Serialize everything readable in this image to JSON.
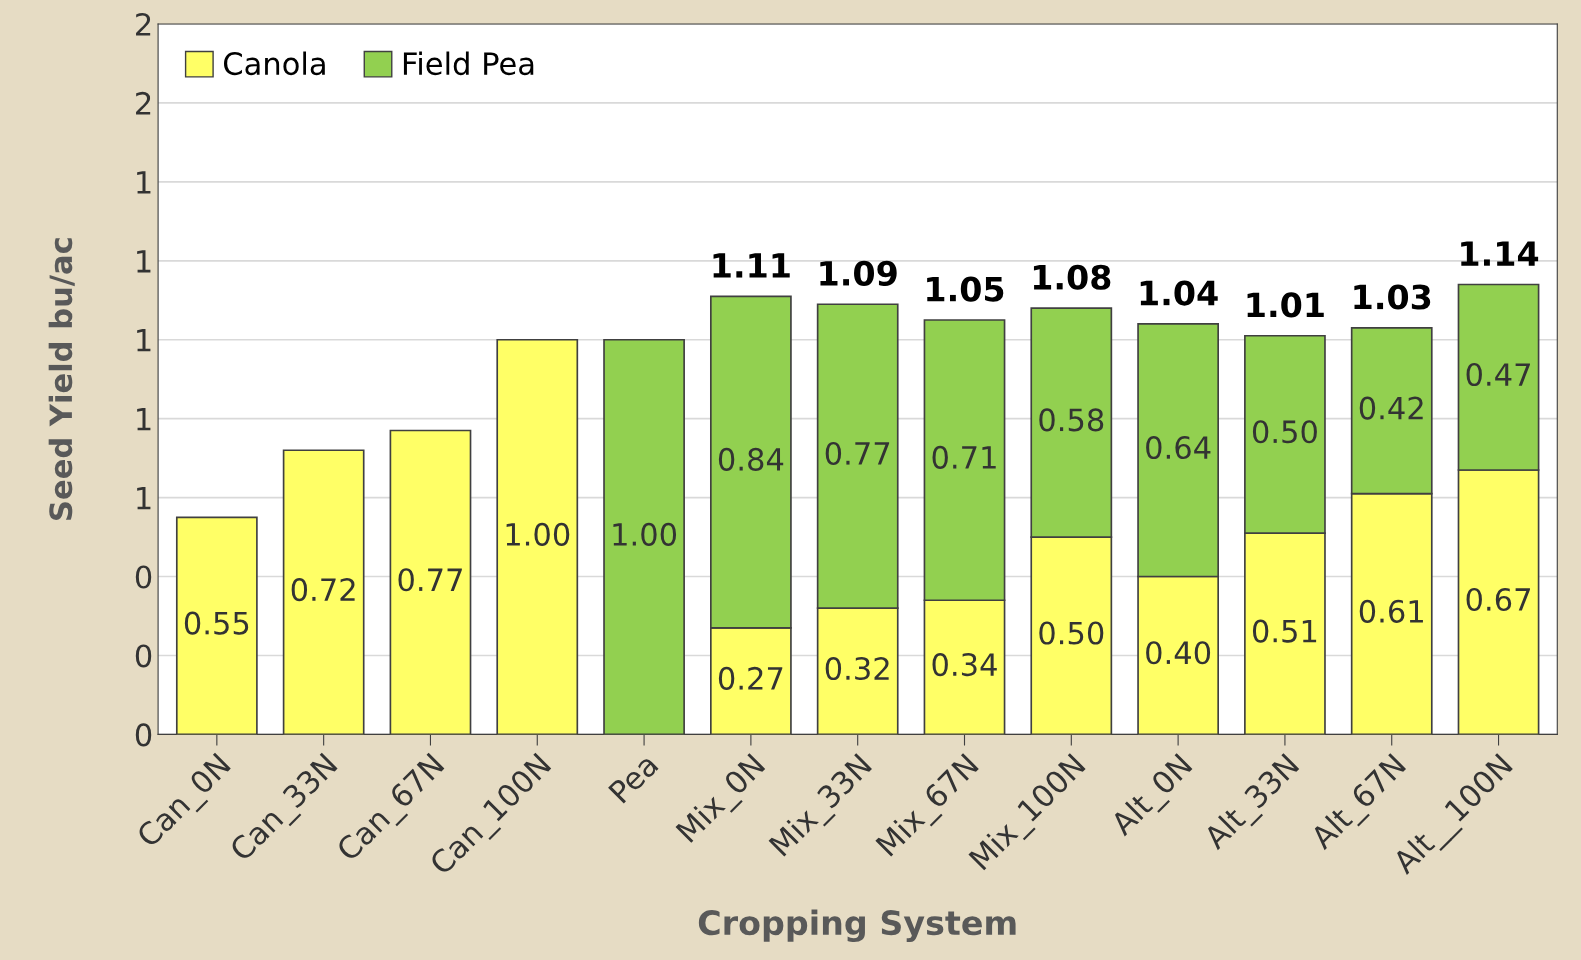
{
  "chart_data": {
    "type": "bar",
    "stacked": true,
    "xlabel": "Cropping System",
    "ylabel": "Seed Yield bu/ac",
    "categories": [
      "Can_0N",
      "Can_33N",
      "Can_67N",
      "Can_100N",
      "Pea",
      "Mix_0N",
      "Mix_33N",
      "Mix_67N",
      "Mix_100N",
      "Alt_0N",
      "Alt_33N",
      "Alt_67N",
      "Alt__100N"
    ],
    "series": [
      {
        "name": "Canola",
        "color": "#ffff66",
        "values": [
          0.55,
          0.72,
          0.77,
          1.0,
          null,
          0.27,
          0.32,
          0.34,
          0.5,
          0.4,
          0.51,
          0.61,
          0.67
        ],
        "value_labels": [
          "0.55",
          "0.72",
          "0.77",
          "1.00",
          null,
          "0.27",
          "0.32",
          "0.34",
          "0.50",
          "0.40",
          "0.51",
          "0.61",
          "0.67"
        ]
      },
      {
        "name": "Field Pea",
        "color": "#92d050",
        "values": [
          null,
          null,
          null,
          null,
          1.0,
          0.84,
          0.77,
          0.71,
          0.58,
          0.64,
          0.5,
          0.42,
          0.47
        ],
        "value_labels": [
          null,
          null,
          null,
          null,
          "1.00",
          "0.84",
          "0.77",
          "0.71",
          "0.58",
          "0.64",
          "0.50",
          "0.42",
          "0.47"
        ]
      }
    ],
    "totals": [
      null,
      null,
      null,
      null,
      null,
      "1.11",
      "1.09",
      "1.05",
      "1.08",
      "1.04",
      "1.01",
      "1.03",
      "1.14"
    ],
    "ylim": [
      0,
      1.8
    ],
    "yticks": [
      0,
      {
        "value": 0.2,
        "label": "0"
      },
      {
        "value": 0.4,
        "label": "0"
      },
      {
        "value": 0.6,
        "label": "1"
      },
      {
        "value": 0.8,
        "label": "1"
      },
      1,
      {
        "value": 1.2,
        "label": "1"
      },
      {
        "value": 1.4,
        "label": "1"
      },
      {
        "value": 1.6,
        "label": "2"
      },
      {
        "value": 1.8,
        "label": "2"
      }
    ],
    "grid": "y",
    "legend": "top left"
  }
}
